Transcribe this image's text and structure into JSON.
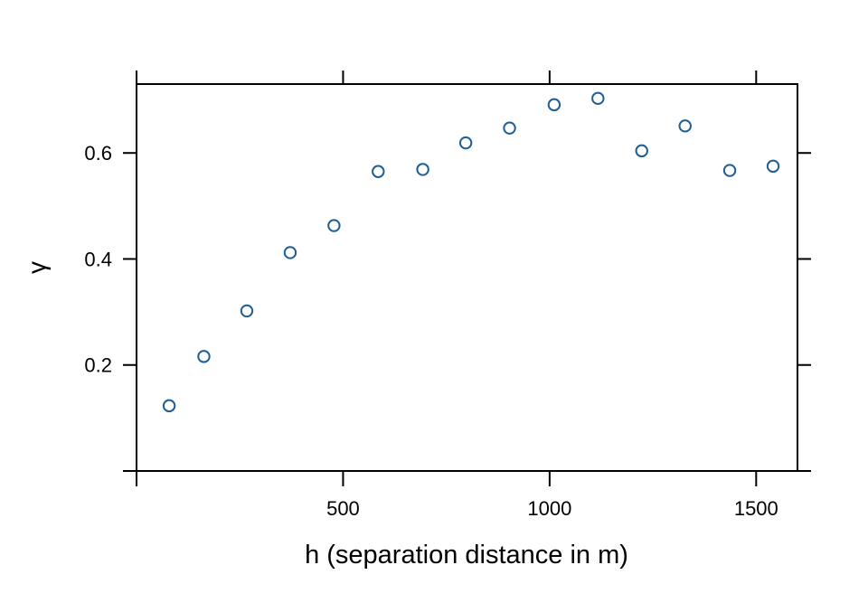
{
  "chart_data": {
    "type": "scatter",
    "title": "",
    "xlabel": "h (separation distance in m)",
    "ylabel": "γ",
    "xlim": [
      0,
      1600
    ],
    "ylim": [
      0,
      0.73
    ],
    "x_ticks": [
      500,
      1000,
      1500
    ],
    "x_tick_labels": [
      "500",
      "1000",
      "1500"
    ],
    "y_ticks": [
      0.2,
      0.4,
      0.6
    ],
    "y_tick_labels": [
      "0.2",
      "0.4",
      "0.6"
    ],
    "grid": false,
    "legend": "none",
    "marker": "open-circle",
    "series": [
      {
        "color": "#1f5f96",
        "points": [
          {
            "x": 79,
            "y": 0.123
          },
          {
            "x": 163,
            "y": 0.216
          },
          {
            "x": 267,
            "y": 0.302
          },
          {
            "x": 372,
            "y": 0.412
          },
          {
            "x": 478,
            "y": 0.463
          },
          {
            "x": 585,
            "y": 0.565
          },
          {
            "x": 693,
            "y": 0.569
          },
          {
            "x": 797,
            "y": 0.619
          },
          {
            "x": 903,
            "y": 0.647
          },
          {
            "x": 1011,
            "y": 0.691
          },
          {
            "x": 1117,
            "y": 0.703
          },
          {
            "x": 1223,
            "y": 0.604
          },
          {
            "x": 1328,
            "y": 0.651
          },
          {
            "x": 1436,
            "y": 0.567
          },
          {
            "x": 1541,
            "y": 0.575
          }
        ]
      }
    ]
  }
}
